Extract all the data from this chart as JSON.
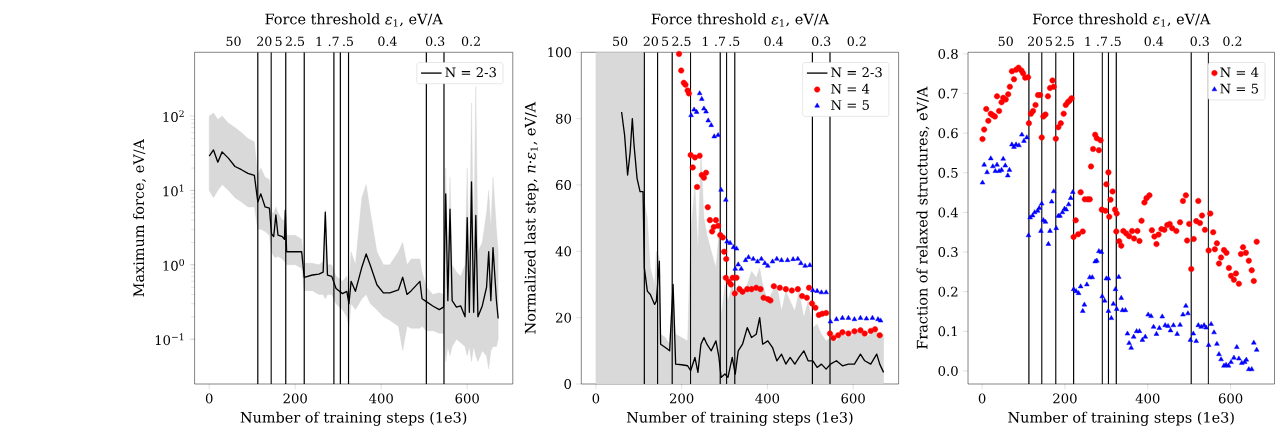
{
  "chart_data": [
    {
      "type": "line",
      "xlabel": "Number of training steps (1e3)",
      "ylabel": "Maximum force, eV/A",
      "x2label": "Force threshold *ε*$_{1}$, eV/A",
      "xlim": [
        -34,
        706
      ],
      "xticks": [
        0,
        200,
        400,
        600
      ],
      "annotations": [
        "50",
        "20",
        "5",
        "2.5",
        "1",
        ".7",
        ".5",
        "0.4",
        "0.3",
        "0.2"
      ],
      "ylim": [
        0.025,
        720
      ],
      "log": true,
      "yticks": [
        {
          "value": 0.1,
          "label": "10$^{−1}$"
        },
        {
          "value": 1,
          "label": "10$^{0}$"
        },
        {
          "value": 10,
          "label": "10$^{1}$"
        },
        {
          "value": 100,
          "label": "10$^{2}$"
        }
      ],
      "legend": "top right",
      "ref_lines": [
        {
          "axis": "x",
          "value": 113,
          "color": "#000000"
        },
        {
          "axis": "x",
          "value": 144,
          "color": "#000000"
        },
        {
          "axis": "x",
          "value": 178,
          "color": "#000000"
        },
        {
          "axis": "x",
          "value": 221,
          "color": "#000000"
        },
        {
          "axis": "x",
          "value": 290,
          "color": "#000000"
        },
        {
          "axis": "x",
          "value": 305,
          "color": "#000000"
        },
        {
          "axis": "x",
          "value": 324,
          "color": "#000000"
        },
        {
          "axis": "x",
          "value": 505,
          "color": "#000000"
        },
        {
          "axis": "x",
          "value": 546,
          "color": "#000000"
        }
      ],
      "series": [
        {
          "name": "N = 2-3",
          "type": "line",
          "color": "#000000",
          "x": [
            0,
            10,
            20,
            30,
            45,
            60,
            75,
            90,
            105,
            113,
            120,
            130,
            140,
            145,
            150,
            155,
            160,
            170,
            175,
            177,
            180,
            200,
            215,
            221,
            240,
            255,
            265,
            270,
            275,
            285,
            295,
            310,
            320,
            325,
            330,
            340,
            355,
            365,
            375,
            390,
            405,
            420,
            440,
            450,
            460,
            470,
            490,
            495,
            505,
            520,
            535,
            545,
            550,
            555,
            560,
            565,
            575,
            585,
            595,
            600,
            605,
            610,
            615,
            620,
            625,
            635,
            645,
            650,
            655,
            660,
            668,
            672
          ],
          "values": [
            29,
            35,
            24,
            33,
            27,
            21,
            19,
            17,
            16,
            7,
            9,
            6,
            5.8,
            2.6,
            2.4,
            4.7,
            2.5,
            2.4,
            2.2,
            5.4,
            1.5,
            1.5,
            1.5,
            0.68,
            0.73,
            0.75,
            0.8,
            5.1,
            0.73,
            0.7,
            0.48,
            0.41,
            0.44,
            0.3,
            0.6,
            0.44,
            0.93,
            1.4,
            0.97,
            0.54,
            0.42,
            0.42,
            0.46,
            0.68,
            0.4,
            0.45,
            0.6,
            0.35,
            0.32,
            0.28,
            0.25,
            0.27,
            9,
            0.33,
            5.6,
            0.33,
            0.27,
            0.28,
            0.2,
            4.3,
            0.23,
            13,
            0.23,
            4.6,
            0.2,
            0.28,
            0.5,
            1.5,
            0.33,
            1.7,
            0.33,
            0.19
          ],
          "lower": [
            10,
            8,
            10,
            12,
            10,
            8,
            7,
            6,
            6,
            3,
            3,
            2.8,
            2.5,
            1.5,
            1.3,
            1.25,
            1.3,
            1.2,
            1.1,
            1.1,
            1.0,
            1.0,
            0.9,
            0.45,
            0.45,
            0.4,
            0.4,
            0.35,
            0.4,
            0.4,
            0.3,
            0.25,
            0.2,
            0.15,
            0.3,
            0.25,
            0.35,
            0.4,
            0.3,
            0.25,
            0.2,
            0.18,
            0.15,
            0.07,
            0.15,
            0.14,
            0.14,
            0.15,
            0.13,
            0.13,
            0.12,
            0.12,
            0.05,
            0.08,
            0.06,
            0.08,
            0.1,
            0.09,
            0.08,
            0.06,
            0.08,
            0.05,
            0.08,
            0.06,
            0.05,
            0.07,
            0.06,
            0.04,
            0.07,
            0.08,
            0.08,
            0.1
          ],
          "upper": [
            100,
            110,
            90,
            100,
            80,
            70,
            60,
            50,
            45,
            16,
            20,
            15,
            14,
            5,
            5,
            6,
            5,
            4,
            4,
            6,
            2.5,
            2.5,
            2.2,
            1.05,
            1.05,
            1.0,
            1.1,
            5.5,
            1.0,
            1.0,
            0.7,
            0.6,
            0.7,
            0.5,
            1.5,
            1.0,
            8,
            12,
            5,
            1.5,
            1.0,
            1.0,
            1.5,
            2.0,
            1.0,
            1.2,
            1.2,
            0.8,
            0.5,
            0.4,
            0.42,
            0.4,
            20,
            0.8,
            15,
            1,
            0.8,
            0.7,
            1,
            20,
            1,
            150,
            1.5,
            250,
            1.5,
            2,
            5,
            10,
            3,
            15,
            3,
            1.5
          ]
        }
      ]
    },
    {
      "type": "line",
      "xlabel": "Number of training steps (1e3)",
      "ylabel": "Normalized last step,  *n*·*ε*$_{1}$, eV/A",
      "x2label": "Force threshold *ε*$_{1}$, eV/A",
      "xlim": [
        -34,
        706
      ],
      "xticks": [
        0,
        200,
        400,
        600
      ],
      "annotations": [
        "50",
        "20",
        "5",
        "2.5",
        "1",
        ".7",
        ".5",
        "0.4",
        "0.3",
        "0.2"
      ],
      "ylim": [
        0,
        100
      ],
      "yticks": [
        0,
        20,
        40,
        60,
        80,
        100
      ],
      "legend": "top right",
      "ref_lines": [
        {
          "axis": "x",
          "value": 113,
          "color": "#000000"
        },
        {
          "axis": "x",
          "value": 144,
          "color": "#000000"
        },
        {
          "axis": "x",
          "value": 178,
          "color": "#000000"
        },
        {
          "axis": "x",
          "value": 221,
          "color": "#000000"
        },
        {
          "axis": "x",
          "value": 290,
          "color": "#000000"
        },
        {
          "axis": "x",
          "value": 305,
          "color": "#000000"
        },
        {
          "axis": "x",
          "value": 324,
          "color": "#000000"
        },
        {
          "axis": "x",
          "value": 505,
          "color": "#000000"
        },
        {
          "axis": "x",
          "value": 546,
          "color": "#000000"
        }
      ],
      "series": [
        {
          "name": "N = 2-3",
          "type": "line",
          "color": "#000000",
          "x": [
            0,
            20,
            40,
            60,
            67,
            74,
            80,
            85,
            89,
            96,
            103,
            110,
            113,
            120,
            127,
            137,
            141,
            148,
            151,
            162,
            172,
            180,
            186,
            200,
            214,
            221,
            231,
            238,
            245,
            252,
            259,
            269,
            280,
            287,
            292,
            301,
            308,
            318,
            325,
            332,
            342,
            353,
            363,
            374,
            382,
            389,
            401,
            412,
            422,
            433,
            443,
            453,
            464,
            474,
            485,
            495,
            506,
            516,
            526,
            537,
            547,
            561,
            575,
            589,
            603,
            617,
            627,
            641,
            655,
            662,
            671
          ],
          "values": [
            null,
            null,
            null,
            82,
            75,
            63,
            70,
            80,
            72,
            62,
            58,
            58,
            35,
            28,
            27,
            24,
            25,
            37,
            12,
            11,
            10,
            30,
            6,
            5.8,
            5.5,
            4,
            8,
            3.5,
            12,
            14,
            12,
            10,
            13,
            8,
            2,
            3,
            2,
            8,
            3,
            10,
            12,
            17,
            14,
            15,
            20,
            12,
            13,
            11,
            7,
            9,
            6,
            8,
            6,
            8,
            10,
            7,
            7,
            5,
            6,
            4.5,
            6,
            7,
            5.5,
            6,
            6,
            9,
            7,
            6,
            9,
            6,
            3.5
          ],
          "lower": [
            0,
            0,
            0,
            0,
            0,
            0,
            0,
            0,
            0,
            0,
            0,
            0,
            0,
            0,
            0,
            0,
            0,
            0,
            0,
            0,
            0,
            0,
            0,
            0,
            0,
            0,
            0,
            0,
            0,
            0,
            0,
            0,
            0,
            0,
            0,
            0,
            0,
            0,
            0,
            0,
            0,
            0,
            0,
            0,
            0,
            0,
            0,
            0,
            0,
            0,
            0,
            0,
            0,
            0,
            0,
            0,
            0,
            0,
            0,
            0,
            0,
            0,
            0,
            0,
            0,
            0,
            0,
            0,
            0,
            0,
            0
          ],
          "upper": [
            100,
            100,
            100,
            100,
            100,
            100,
            100,
            100,
            100,
            100,
            100,
            100,
            55,
            50,
            35,
            30,
            40,
            38,
            15,
            14,
            12,
            30,
            15,
            14,
            13,
            45,
            60,
            40,
            70,
            50,
            45,
            40,
            35,
            45,
            20,
            30,
            25,
            30,
            25,
            30,
            28,
            30,
            34,
            32,
            35,
            30,
            25,
            28,
            30,
            22,
            28,
            25,
            22,
            28,
            20,
            25,
            17,
            18,
            15,
            13,
            14,
            13,
            15,
            14,
            15,
            16,
            14,
            15,
            16,
            14,
            15
          ]
        },
        {
          "name": "N = 4",
          "type": "scatter",
          "marker": "circle",
          "color": "#ff0000",
          "x": [
            194,
            199,
            205,
            209,
            214,
            217,
            221,
            226,
            231,
            236,
            242,
            247,
            252,
            257,
            261,
            266,
            271,
            275,
            280,
            285,
            290,
            296,
            299,
            304,
            303,
            310,
            315,
            319,
            324,
            328,
            335,
            342,
            353,
            363,
            374,
            384,
            391,
            401,
            407,
            415,
            429,
            443,
            457,
            471,
            481,
            492,
            497,
            504,
            512,
            520,
            528,
            537,
            546,
            554,
            565,
            575,
            589,
            603,
            617,
            627,
            641,
            651,
            662
          ],
          "values": [
            99.5,
            94.5,
            90.8,
            90.2,
            88.5,
            87.6,
            69,
            65.3,
            68.3,
            59.4,
            68.8,
            63,
            62.2,
            63.7,
            53.3,
            49.4,
            46,
            47.3,
            49.4,
            47.7,
            44.9,
            44.2,
            39.9,
            37.7,
            32,
            30.8,
            30,
            32,
            27.3,
            32,
            28.6,
            27.8,
            28.6,
            28.6,
            29,
            28.6,
            26,
            25.6,
            25.2,
            29.5,
            29,
            28.6,
            28.2,
            28.6,
            26.5,
            26,
            29,
            24.3,
            23,
            20.8,
            21.2,
            21.4,
            15.2,
            13.9,
            14.7,
            15.6,
            15.2,
            15.9,
            16.2,
            15.2,
            16,
            16.5,
            14.7
          ]
        },
        {
          "name": "N = 5",
          "type": "scatter",
          "marker": "triangle",
          "color": "#0000ff",
          "x": [
            222,
            229,
            235,
            242,
            247,
            252,
            257,
            262,
            269,
            276,
            285,
            292,
            303,
            306,
            313,
            321,
            328,
            325,
            332,
            339,
            349,
            356,
            367,
            377,
            386,
            394,
            401,
            412,
            422,
            433,
            447,
            460,
            471,
            478,
            488,
            499,
            506,
            516,
            526,
            537,
            547,
            561,
            575,
            589,
            603,
            617,
            631,
            645,
            658,
            664
          ],
          "values": [
            81,
            82.7,
            82,
            87.6,
            85.9,
            83,
            82.1,
            79.4,
            78,
            74.6,
            75,
            58.5,
            55.5,
            42.9,
            42.5,
            41.2,
            40.8,
            34.7,
            36,
            34.7,
            37.3,
            38.2,
            37.7,
            36.9,
            37.7,
            36.4,
            35.6,
            36.9,
            37.7,
            37.3,
            37.3,
            37.6,
            37.7,
            36.4,
            35.6,
            35.8,
            28.2,
            28,
            27.6,
            27.6,
            18.8,
            19.5,
            19.9,
            19.9,
            19.5,
            19.9,
            19.7,
            19.9,
            19.5,
            19.1
          ]
        }
      ]
    },
    {
      "type": "scatter",
      "xlabel": "Number of training steps (1e3)",
      "ylabel": "Fraction of relaxed structures, eV/A",
      "x2label": "Force threshold *ε*$_{1}$, eV/A",
      "xlim": [
        -34,
        706
      ],
      "xticks": [
        0,
        200,
        400,
        600
      ],
      "annotations": [
        "50",
        "20",
        "5",
        "2.5",
        "1",
        ".7",
        ".5",
        "0.4",
        "0.3",
        "0.2"
      ],
      "ylim": [
        -0.033,
        0.804
      ],
      "yticks": [
        {
          "value": 0,
          "label": "0.0"
        },
        0.1,
        0.2,
        0.3,
        0.4,
        0.5,
        0.6,
        0.7,
        0.8
      ],
      "legend": "top right",
      "ref_lines": [
        {
          "axis": "x",
          "value": 113,
          "color": "#000000"
        },
        {
          "axis": "x",
          "value": 144,
          "color": "#000000"
        },
        {
          "axis": "x",
          "value": 178,
          "color": "#000000"
        },
        {
          "axis": "x",
          "value": 221,
          "color": "#000000"
        },
        {
          "axis": "x",
          "value": 290,
          "color": "#000000"
        },
        {
          "axis": "x",
          "value": 305,
          "color": "#000000"
        },
        {
          "axis": "x",
          "value": 324,
          "color": "#000000"
        },
        {
          "axis": "x",
          "value": 505,
          "color": "#000000"
        },
        {
          "axis": "x",
          "value": 546,
          "color": "#000000"
        }
      ],
      "series": [
        {
          "name": "N = 4",
          "marker": "circle",
          "color": "#ff0000",
          "x": [
            1,
            5,
            10,
            15,
            21,
            26,
            31,
            36,
            41,
            47,
            51,
            57,
            63,
            67,
            72,
            77,
            82,
            88,
            95,
            99,
            104,
            111,
            113,
            118,
            123,
            129,
            135,
            140,
            144,
            148,
            153,
            159,
            164,
            170,
            173,
            178,
            184,
            190,
            197,
            202,
            207,
            211,
            216,
            221,
            226,
            232,
            238,
            243,
            248,
            255,
            260,
            263,
            268,
            273,
            277,
            282,
            286,
            289,
            298,
            300,
            305,
            307,
            310,
            315,
            321,
            325,
            324,
            331,
            336,
            341,
            348,
            355,
            362,
            367,
            375,
            380,
            385,
            392,
            397,
            404,
            410,
            416,
            421,
            426,
            433,
            440,
            447,
            453,
            459,
            469,
            478,
            485,
            492,
            495,
            500,
            505,
            511,
            517,
            522,
            526,
            531,
            538,
            547,
            551,
            558,
            562,
            567,
            572,
            577,
            584,
            590,
            596,
            601,
            608,
            613,
            620,
            625,
            630,
            637,
            644,
            651,
            656,
            663
          ],
          "values": [
            0.585,
            0.609,
            0.661,
            0.631,
            0.649,
            0.645,
            0.642,
            0.693,
            0.656,
            0.678,
            0.689,
            0.685,
            0.698,
            0.717,
            0.756,
            0.736,
            0.76,
            0.765,
            0.758,
            0.751,
            0.74,
            0.741,
            0.625,
            0.649,
            0.656,
            0.671,
            0.696,
            0.696,
            0.589,
            0.642,
            0.647,
            0.693,
            0.714,
            0.733,
            0.717,
            0.586,
            0.615,
            0.625,
            0.649,
            0.671,
            0.678,
            0.682,
            0.688,
            0.338,
            0.38,
            0.345,
            0.451,
            0.352,
            0.433,
            0.433,
            0.433,
            0.516,
            0.56,
            0.596,
            0.587,
            0.557,
            0.582,
            0.407,
            0.404,
            0.471,
            0.501,
            0.389,
            0.432,
            0.453,
            0.407,
            0.397,
            0.352,
            0.327,
            0.316,
            0.353,
            0.347,
            0.34,
            0.353,
            0.334,
            0.353,
            0.328,
            0.379,
            0.425,
            0.436,
            0.443,
            0.355,
            0.339,
            0.32,
            0.344,
            0.358,
            0.356,
            0.368,
            0.371,
            0.36,
            0.353,
            0.375,
            0.429,
            0.443,
            0.329,
            0.371,
            0.257,
            0.333,
            0.378,
            0.429,
            0.373,
            0.392,
            0.356,
            0.304,
            0.397,
            0.35,
            0.307,
            0.322,
            0.271,
            0.286,
            0.305,
            0.298,
            0.26,
            0.24,
            0.23,
            0.246,
            0.22,
            0.295,
            0.312,
            0.298,
            0.278,
            0.254,
            0.227,
            0.326
          ]
        },
        {
          "name": "N = 5",
          "marker": "triangle",
          "color": "#0000ff",
          "x": [
            1,
            5,
            12,
            21,
            26,
            32,
            36,
            41,
            47,
            51,
            56,
            62,
            66,
            72,
            77,
            82,
            89,
            96,
            101,
            108,
            112,
            116,
            122,
            127,
            134,
            138,
            144,
            142,
            148,
            153,
            160,
            164,
            168,
            173,
            179,
            184,
            188,
            194,
            199,
            203,
            209,
            214,
            219,
            221,
            227,
            233,
            238,
            243,
            247,
            253,
            260,
            266,
            273,
            277,
            282,
            288,
            290,
            296,
            300,
            305,
            305,
            312,
            317,
            322,
            325,
            330,
            336,
            339,
            346,
            351,
            355,
            360,
            366,
            373,
            380,
            387,
            394,
            401,
            408,
            414,
            421,
            428,
            435,
            442,
            449,
            455,
            462,
            471,
            478,
            485,
            492,
            497,
            503,
            510,
            517,
            522,
            529,
            536,
            541,
            547,
            553,
            560,
            567,
            572,
            577,
            584,
            589,
            595,
            601,
            608,
            615,
            620,
            627,
            634,
            638,
            644,
            651,
            656,
            663
          ],
          "values": [
            0.475,
            0.52,
            0.501,
            0.536,
            0.516,
            0.504,
            0.52,
            0.504,
            0.507,
            0.535,
            0.518,
            0.493,
            0.507,
            0.571,
            0.565,
            0.571,
            0.569,
            0.596,
            0.58,
            0.589,
            0.342,
            0.387,
            0.392,
            0.4,
            0.404,
            0.411,
            0.422,
            0.353,
            0.38,
            0.376,
            0.32,
            0.353,
            0.427,
            0.453,
            0.36,
            0.391,
            0.391,
            0.4,
            0.409,
            0.407,
            0.42,
            0.436,
            0.451,
            0.206,
            0.201,
            0.196,
            0.213,
            0.151,
            0.167,
            0.218,
            0.236,
            0.236,
            0.276,
            0.278,
            0.302,
            0.3,
            0.188,
            0.177,
            0.233,
            0.233,
            0.151,
            0.133,
            0.169,
            0.206,
            0.156,
            0.237,
            0.184,
            0.153,
            0.153,
            0.094,
            0.07,
            0.058,
            0.086,
            0.1,
            0.1,
            0.078,
            0.086,
            0.142,
            0.138,
            0.111,
            0.093,
            0.108,
            0.137,
            0.115,
            0.113,
            0.102,
            0.115,
            0.093,
            0.116,
            0.142,
            0.164,
            0.145,
            0.078,
            0.094,
            0.075,
            0.115,
            0.111,
            0.115,
            0.109,
            0.065,
            0.118,
            0.097,
            0.068,
            0.042,
            0.029,
            0.013,
            0.015,
            0.013,
            0.022,
            0.033,
            0.06,
            0.031,
            0.02,
            0.022,
            0.028,
            0.004,
            0.004,
            0.071,
            0.053
          ]
        }
      ]
    }
  ]
}
